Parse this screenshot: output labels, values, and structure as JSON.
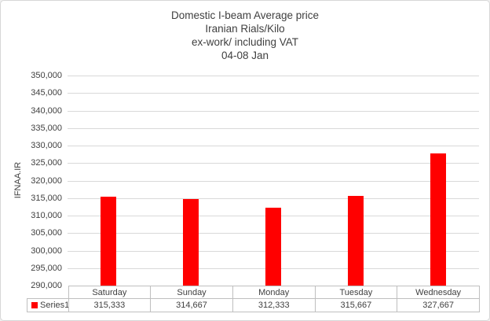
{
  "chart_data": {
    "type": "bar",
    "title_lines": [
      "Domestic I-beam Average price",
      "Iranian Rials/Kilo",
      "ex-work/ including VAT",
      "04-08 Jan"
    ],
    "categories": [
      "Saturday",
      "Sunday",
      "Monday",
      "Tuesday",
      "Wednesday"
    ],
    "series": [
      {
        "name": "Series1",
        "values": [
          315333,
          314667,
          312333,
          315667,
          327667
        ],
        "value_labels": [
          "315,333",
          "314,667",
          "312,333",
          "315,667",
          "327,667"
        ]
      }
    ],
    "xlabel": "",
    "ylabel": "IFNAA.IR",
    "ylim": [
      290000,
      350000
    ],
    "ytick_step": 5000,
    "yticks": [
      350000,
      345000,
      340000,
      335000,
      330000,
      325000,
      320000,
      315000,
      310000,
      305000,
      300000,
      295000,
      290000
    ],
    "ytick_labels": [
      "350,000",
      "345,000",
      "340,000",
      "335,000",
      "330,000",
      "325,000",
      "320,000",
      "315,000",
      "310,000",
      "305,000",
      "300,000",
      "295,000",
      "290,000"
    ],
    "grid": true,
    "legend": {
      "entries": [
        "Series1"
      ],
      "position": "data-table-left"
    },
    "data_table_shown": true
  },
  "colors": {
    "bar": "#ff0000",
    "gridline": "#d9d9d9",
    "table_border": "#bfbfbf",
    "text": "#404040",
    "chart_border": "#d7d7d7",
    "background": "#ffffff"
  }
}
